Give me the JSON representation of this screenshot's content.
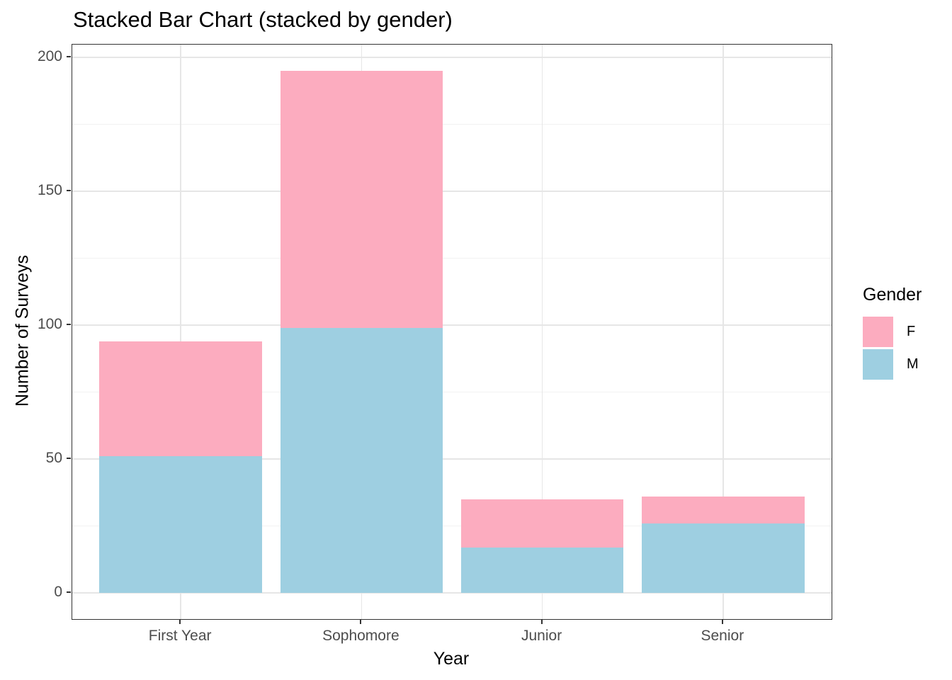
{
  "chart_data": {
    "type": "bar",
    "stacked": true,
    "title": "Stacked Bar Chart (stacked by gender)",
    "xlabel": "Year",
    "ylabel": "Number of Surveys",
    "categories": [
      "First Year",
      "Sophomore",
      "Junior",
      "Senior"
    ],
    "series": [
      {
        "name": "F",
        "color": "#FCACBF",
        "values": [
          43,
          96,
          18,
          10
        ]
      },
      {
        "name": "M",
        "color": "#9ECFE1",
        "values": [
          51,
          99,
          17,
          26
        ]
      }
    ],
    "stack_order_bottom_to_top": [
      "M",
      "F"
    ],
    "stacked_totals": [
      94,
      195,
      35,
      36
    ],
    "yticks": [
      0,
      50,
      100,
      150,
      200
    ],
    "y_tick_labels": [
      "0",
      "50",
      "100",
      "150",
      "200"
    ],
    "ylim": [
      0,
      200
    ],
    "grid": "horizontal major+minor, vertical major at category centers",
    "legend": {
      "title": "Gender",
      "position": "right",
      "entries": [
        {
          "label": "F",
          "color": "#FCACBF"
        },
        {
          "label": "M",
          "color": "#9ECFE1"
        }
      ]
    },
    "theme": {
      "panel_background": "#ffffff",
      "panel_border": "#333333",
      "grid_major_color": "#e6e6e6",
      "grid_minor_color": "#f2f2f2",
      "tick_label_color": "#4d4d4d",
      "text_color": "#000000"
    }
  }
}
